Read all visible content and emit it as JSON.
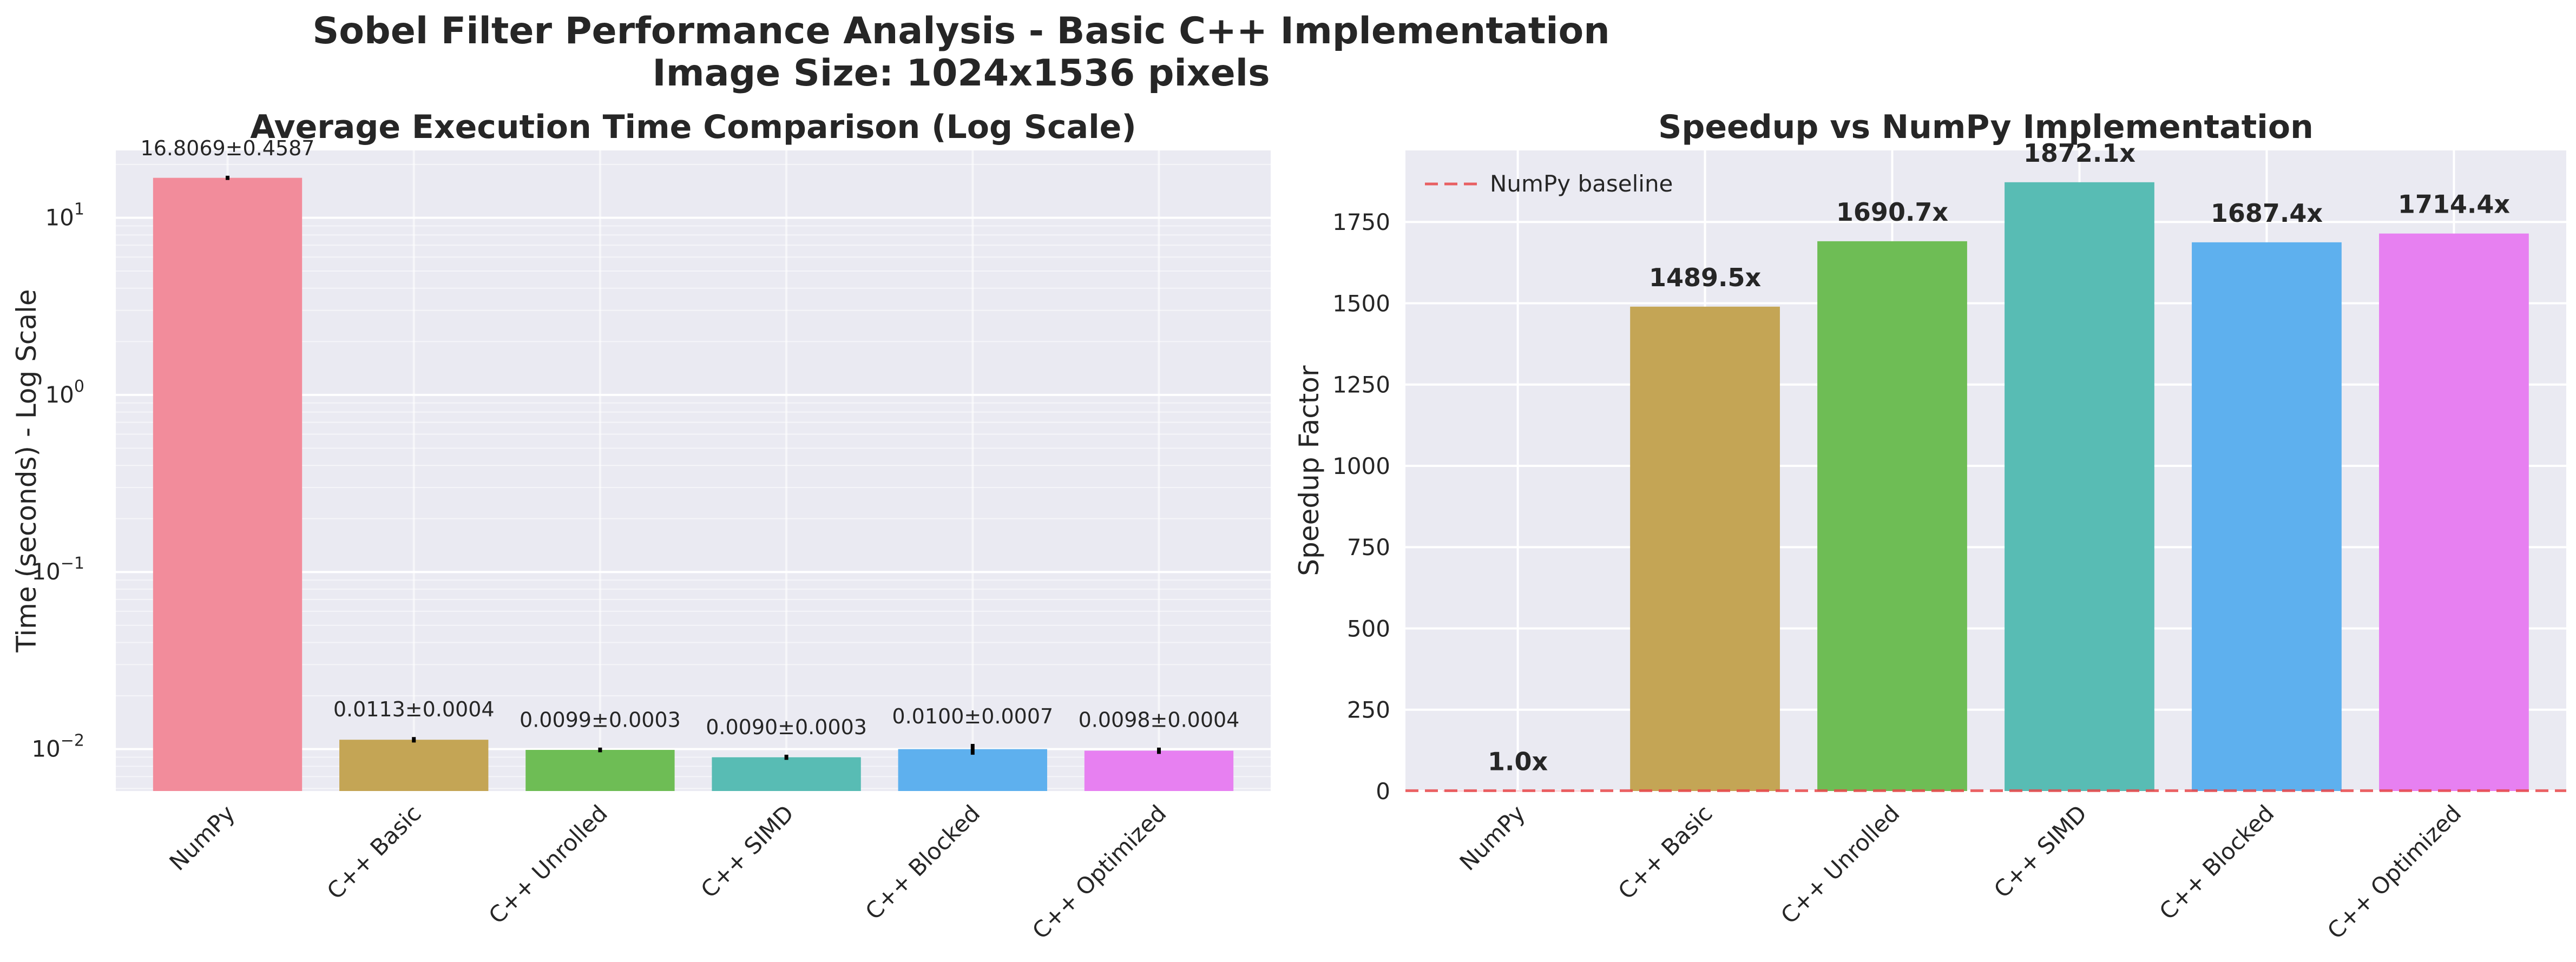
{
  "figure": {
    "title_line1": "Sobel Filter Performance Analysis - Basic C++ Implementation",
    "title_line2": "Image Size: 1024x1536 pixels"
  },
  "chart_data": [
    {
      "type": "bar",
      "title": "Average Execution Time Comparison (Log Scale)",
      "xlabel": "",
      "ylabel": "Time (seconds) - Log Scale",
      "yscale": "log",
      "ylim": [
        0.0058,
        24
      ],
      "ytick_values": [
        0.01,
        0.1,
        1,
        10
      ],
      "ytick_labels": [
        {
          "base": "10",
          "exp": "−2"
        },
        {
          "base": "10",
          "exp": "−1"
        },
        {
          "base": "10",
          "exp": "0"
        },
        {
          "base": "10",
          "exp": "1"
        }
      ],
      "grid": true,
      "categories": [
        "NumPy",
        "C++ Basic",
        "C++ Unrolled",
        "C++ SIMD",
        "C++ Blocked",
        "C++ Optimized"
      ],
      "values": [
        16.8069,
        0.0113,
        0.0099,
        0.009,
        0.01,
        0.0098
      ],
      "errors": [
        0.4587,
        0.0004,
        0.0003,
        0.0003,
        0.0007,
        0.0004
      ],
      "labels": [
        "16.8069±0.4587",
        "0.0113±0.0004",
        "0.0099±0.0003",
        "0.0090±0.0003",
        "0.0100±0.0007",
        "0.0098±0.0004"
      ],
      "colors": [
        "#f28c9b",
        "#c4a555",
        "#6ebd55",
        "#58bcb4",
        "#5eb0ee",
        "#e780f1"
      ]
    },
    {
      "type": "bar",
      "title": "Speedup vs NumPy Implementation",
      "xlabel": "",
      "ylabel": "Speedup Factor",
      "ylim": [
        0,
        1970
      ],
      "ytick_values": [
        0,
        250,
        500,
        750,
        1000,
        1250,
        1500,
        1750
      ],
      "grid": true,
      "categories": [
        "NumPy",
        "C++ Basic",
        "C++ Unrolled",
        "C++ SIMD",
        "C++ Blocked",
        "C++ Optimized"
      ],
      "values": [
        1.0,
        1489.5,
        1690.7,
        1872.1,
        1687.4,
        1714.4
      ],
      "labels": [
        "1.0x",
        "1489.5x",
        "1690.7x",
        "1872.1x",
        "1687.4x",
        "1714.4x"
      ],
      "colors": [
        "#f28c9b",
        "#c4a555",
        "#6ebd55",
        "#58bcb4",
        "#5eb0ee",
        "#e780f1"
      ],
      "baseline": {
        "value": 1,
        "label": "NumPy baseline",
        "color": "#e8474a"
      },
      "legend_position": "top-left"
    }
  ]
}
